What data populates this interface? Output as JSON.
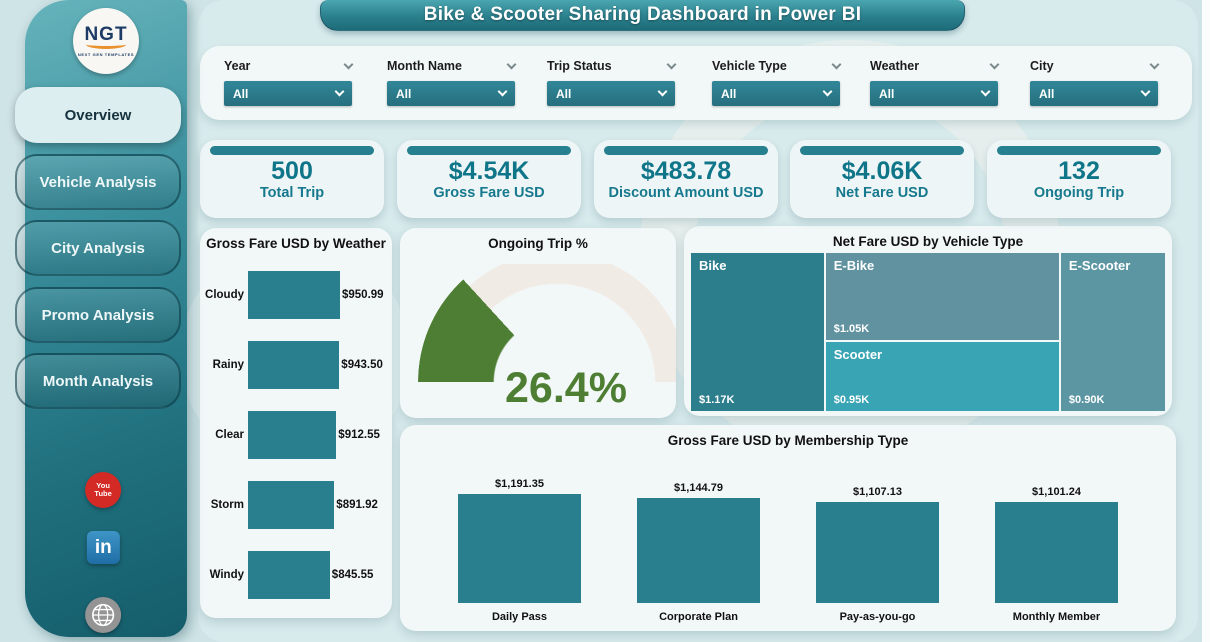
{
  "page": {
    "title": "Bike & Scooter Sharing Dashboard in Power BI"
  },
  "colors": {
    "accent_teal": "#2A7F8E",
    "kpi_text": "#0F7589",
    "gauge_green": "#4E7E33",
    "gauge_track": "#F1EBE6",
    "youtube_red": "#D32A26",
    "linkedin_blue": "#1F6EA6",
    "page_bg": "#CFE4E7",
    "panel_bg": "#F2F8F8"
  },
  "logo": {
    "text": "NGT",
    "subtext": "NEXT GEN TEMPLATES"
  },
  "sidebar": {
    "nav": [
      {
        "label": "Overview",
        "active": true
      },
      {
        "label": "Vehicle Analysis",
        "active": false
      },
      {
        "label": "City Analysis",
        "active": false
      },
      {
        "label": "Promo Analysis",
        "active": false
      },
      {
        "label": "Month Analysis",
        "active": false
      }
    ],
    "social": [
      {
        "name": "youtube",
        "line1": "You",
        "line2": "Tube"
      },
      {
        "name": "linkedin",
        "label": "in"
      },
      {
        "name": "website"
      }
    ]
  },
  "filters": [
    {
      "label": "Year",
      "value": "All"
    },
    {
      "label": "Month Name",
      "value": "All"
    },
    {
      "label": "Trip Status",
      "value": "All"
    },
    {
      "label": "Vehicle Type",
      "value": "All"
    },
    {
      "label": "Weather",
      "value": "All"
    },
    {
      "label": "City",
      "value": "All"
    }
  ],
  "kpis": [
    {
      "value": "500",
      "label": "Total Trip"
    },
    {
      "value": "$4.54K",
      "label": "Gross Fare USD"
    },
    {
      "value": "$483.78",
      "label": "Discount Amount USD"
    },
    {
      "value": "$4.06K",
      "label": "Net Fare USD"
    },
    {
      "value": "132",
      "label": "Ongoing Trip"
    }
  ],
  "chart_data": [
    {
      "type": "bar",
      "orientation": "horizontal",
      "title": "Gross Fare USD by Weather",
      "categories": [
        "Cloudy",
        "Rainy",
        "Clear",
        "Storm",
        "Windy"
      ],
      "values": [
        950.99,
        943.5,
        912.55,
        891.92,
        845.55
      ],
      "value_labels": [
        "$950.99",
        "$943.50",
        "$912.55",
        "$891.92",
        "$845.55"
      ],
      "bar_color": "#2A7F8E",
      "xlim": [
        0,
        1000
      ],
      "grid": false,
      "legend": false
    },
    {
      "type": "gauge",
      "title": "Ongoing Trip %",
      "value_pct": 26.4,
      "label": "26.4%",
      "range": [
        0,
        100
      ],
      "arc_color": "#4E7E33",
      "track_color": "#F1EBE6"
    },
    {
      "type": "heatmap",
      "subtype": "treemap",
      "title": "Net Fare USD by Vehicle Type",
      "items": [
        {
          "label": "Bike",
          "value": 1170,
          "value_label": "$1.17K",
          "color": "#2D7E8D"
        },
        {
          "label": "E-Bike",
          "value": 1050,
          "value_label": "$1.05K",
          "color": "#61929F"
        },
        {
          "label": "Scooter",
          "value": 950,
          "value_label": "$0.95K",
          "color": "#38A4B4"
        },
        {
          "label": "E-Scooter",
          "value": 900,
          "value_label": "$0.90K",
          "color": "#5D96A3"
        }
      ]
    },
    {
      "type": "bar",
      "orientation": "vertical",
      "title": "Gross Fare USD by Membership Type",
      "categories": [
        "Daily Pass",
        "Corporate Plan",
        "Pay-as-you-go",
        "Monthly Member"
      ],
      "values": [
        1191.35,
        1144.79,
        1107.13,
        1101.24
      ],
      "value_labels": [
        "$1,191.35",
        "$1,144.79",
        "$1,107.13",
        "$1,101.24"
      ],
      "bar_color": "#2A7F8E",
      "ylim": [
        0,
        1200
      ],
      "grid": false,
      "legend": false
    }
  ]
}
